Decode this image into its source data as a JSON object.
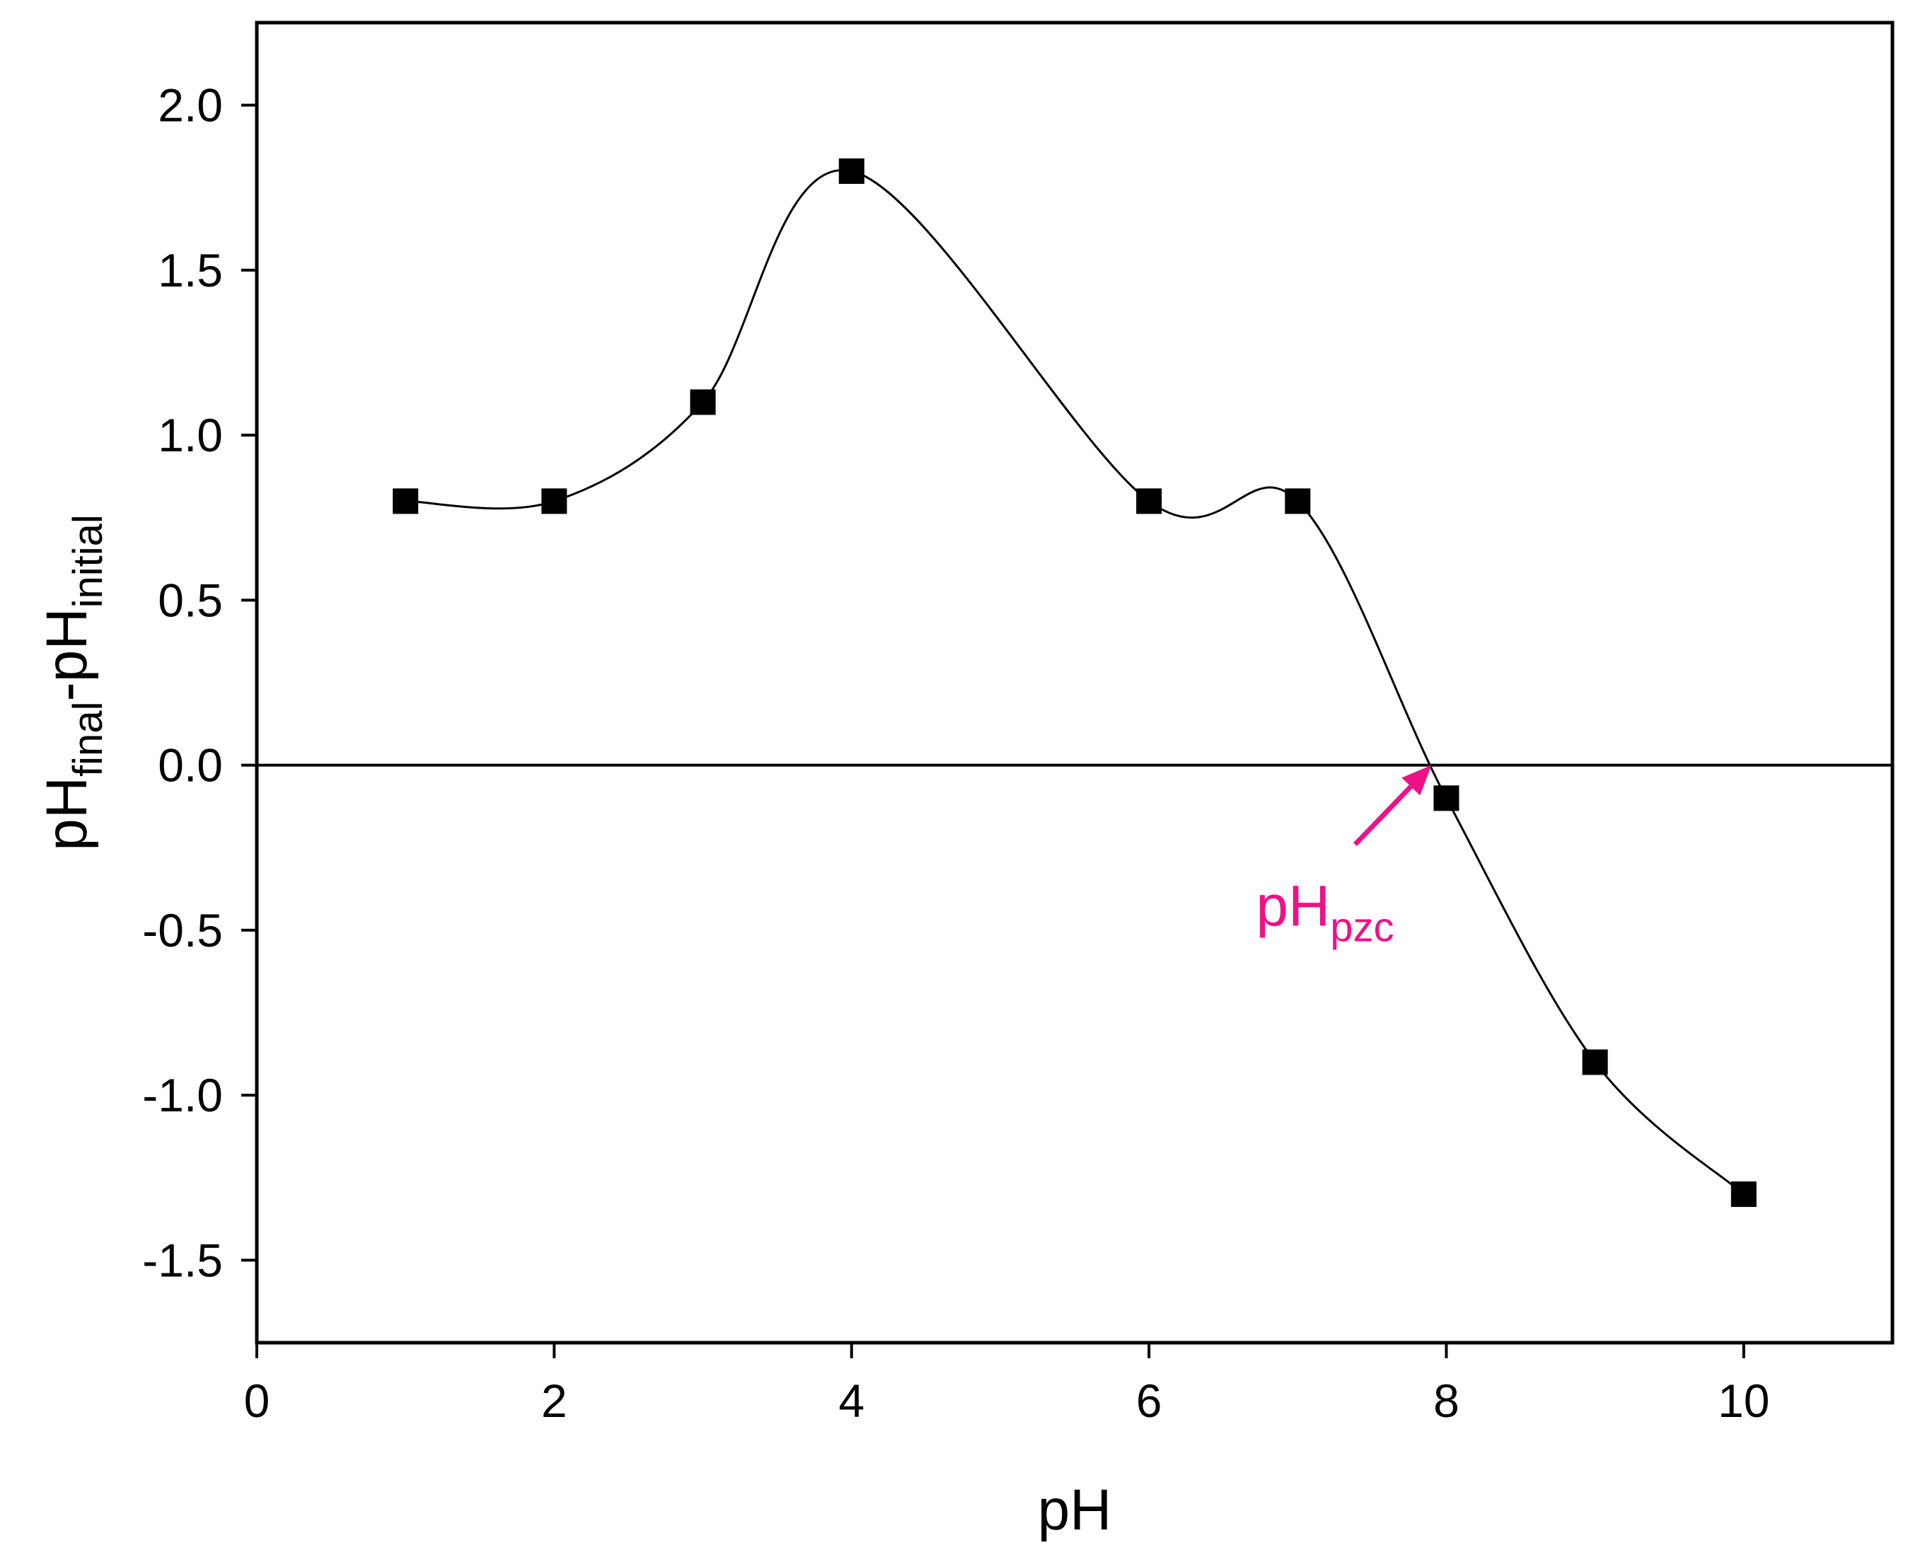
{
  "chart_data": {
    "type": "line",
    "title": "",
    "xlabel": "pH",
    "ylabel": {
      "base1": "pH",
      "sub1": "final",
      "sep": "-",
      "base2": "pH",
      "sub2": "initial"
    },
    "xlim": [
      0,
      11
    ],
    "ylim": [
      -1.75,
      2.25
    ],
    "xticks": [
      0,
      2,
      4,
      6,
      8,
      10
    ],
    "xtick_labels": [
      "0",
      "2",
      "4",
      "6",
      "8",
      "10"
    ],
    "yticks": [
      -1.5,
      -1.0,
      -0.5,
      0.0,
      0.5,
      1.0,
      1.5,
      2.0
    ],
    "ytick_labels": [
      "-1.5",
      "-1.0",
      "-0.5",
      "0.0",
      "0.5",
      "1.0",
      "1.5",
      "2.0"
    ],
    "grid": false,
    "marker": "square",
    "line_style": "smooth spline",
    "series": [
      {
        "x": [
          1,
          2,
          3,
          4,
          6,
          7,
          8,
          9,
          10
        ],
        "y": [
          0.8,
          0.8,
          1.1,
          1.8,
          0.8,
          0.8,
          -0.1,
          -0.9,
          -1.3
        ]
      }
    ],
    "reference_line": {
      "y": 0.0
    },
    "annotation": {
      "base": "pH",
      "sub": "pzc",
      "color": "#ee1188",
      "points_to": {
        "x": 7.9,
        "y": 0.0
      }
    }
  }
}
